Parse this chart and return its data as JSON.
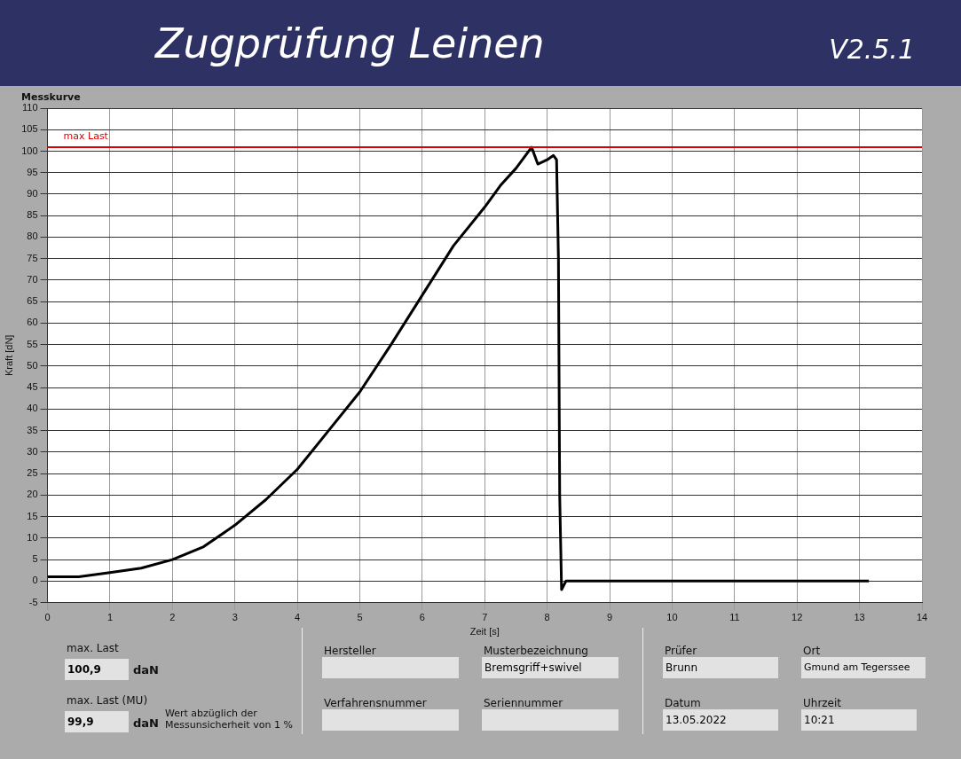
{
  "chart_data": {
    "type": "line",
    "title": "Zugprüfung Leinen",
    "subtitle": "V2.5.1",
    "xlabel": "Zeit [s]",
    "ylabel": "Kraft [dN]",
    "xlim": [
      0,
      14
    ],
    "xticks": [
      0,
      1,
      2,
      3,
      4,
      5,
      6,
      7,
      8,
      9,
      10,
      11,
      12,
      13,
      14
    ],
    "ylim": [
      -5,
      110
    ],
    "yticks": [
      -5,
      0,
      5,
      10,
      15,
      20,
      25,
      30,
      35,
      40,
      45,
      50,
      55,
      60,
      65,
      70,
      75,
      80,
      85,
      90,
      95,
      100,
      105,
      110
    ],
    "grid": true,
    "legend": false,
    "marker": "none",
    "line_style": "solid",
    "series": [
      {
        "color": "#000000",
        "x": [
          0,
          0.5,
          1,
          1.5,
          2,
          2.5,
          3,
          3.5,
          4,
          4.5,
          5,
          5.5,
          6,
          6.5,
          7,
          7.25,
          7.5,
          7.75,
          7.85,
          8,
          8.1,
          8.15,
          8.18,
          8.2,
          8.23,
          8.3,
          9,
          10,
          11,
          12,
          13.15
        ],
        "values": [
          1,
          1,
          2,
          3,
          5,
          8,
          13,
          19,
          26,
          35,
          44,
          55,
          66.5,
          78,
          87,
          92,
          96,
          100.9,
          97,
          98,
          99,
          98,
          75,
          20,
          -2,
          0,
          0,
          0,
          0,
          0,
          0
        ]
      }
    ],
    "ref_lines": [
      {
        "axis": "y",
        "value": 100.9,
        "label": "max Last",
        "color": "#dd0000"
      }
    ],
    "annotations": [
      "Messkurve",
      "max. Last",
      "100,9",
      "daN",
      "max. Last (MU)",
      "99,9",
      "daN",
      "Wert abzüglich der Messunsicherheit von 1 %",
      "Hersteller",
      "Verfahrensnummer",
      "Musterbezeichnung",
      "Bremsgriff+swivel",
      "Seriennummer",
      "Prüfer",
      "Brunn",
      "Datum",
      "13.05.2022",
      "Ort",
      "Gmund am Tegerssee",
      "Uhrzeit",
      "10:21"
    ]
  }
}
